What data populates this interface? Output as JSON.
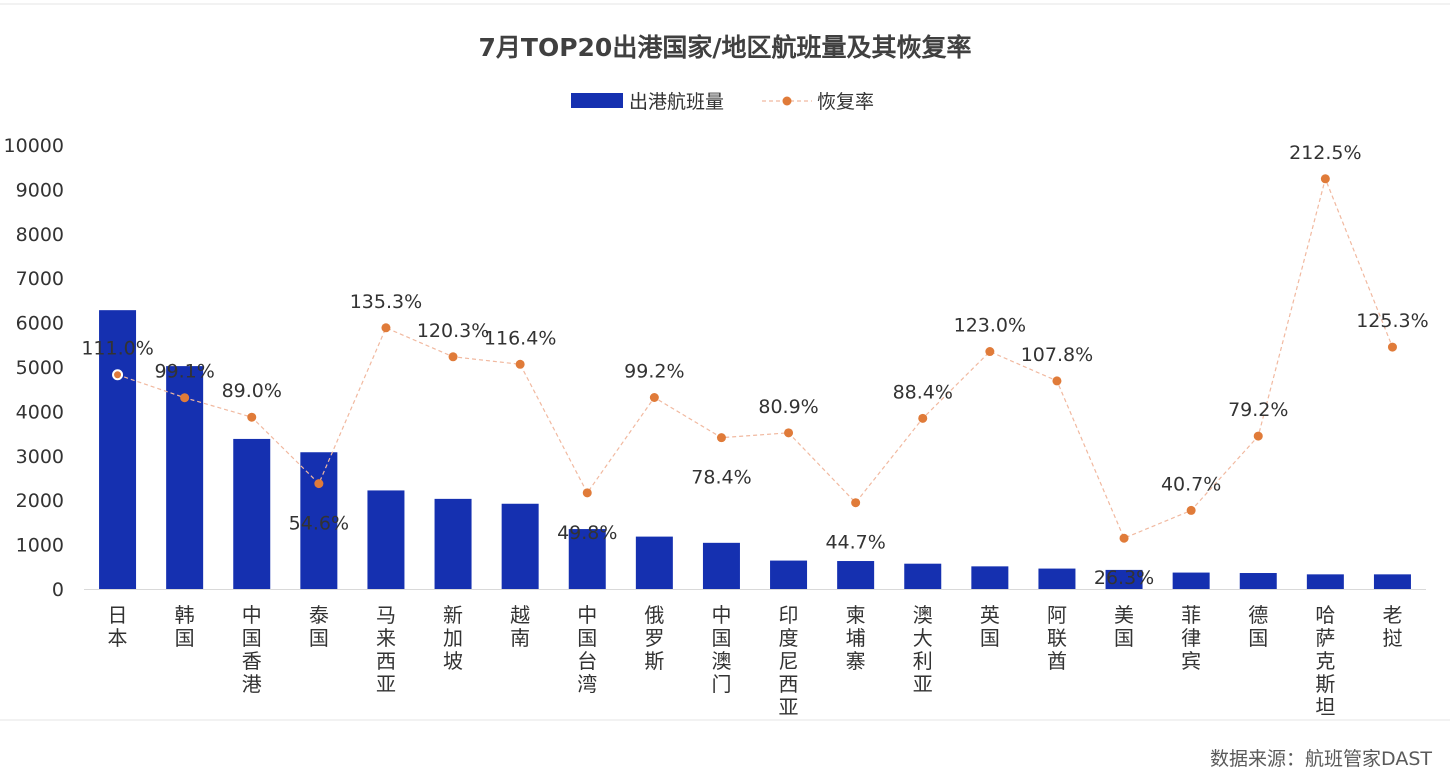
{
  "source": "数据来源：航班管家DAST",
  "colors": {
    "bar": "#1530b0",
    "point": "#e07b39",
    "line": "#f1b9a0",
    "text": "#333333",
    "title": "#404040"
  },
  "chart_data": {
    "type": "bar",
    "title": "7月TOP20出港国家/地区航班量及其恢复率",
    "legend": [
      "出港航班量",
      "恢复率"
    ],
    "legend_position": "top",
    "xlabel": "",
    "ylabel": "",
    "ylim": [
      0,
      10000
    ],
    "yticks": [
      "0",
      "1000",
      "2000",
      "3000",
      "4000",
      "5000",
      "6000",
      "7000",
      "8000",
      "9000",
      "10000"
    ],
    "grid": false,
    "categories": [
      "日本",
      "韩国",
      "中国香港",
      "泰国",
      "马来西亚",
      "新加坡",
      "越南",
      "中国台湾",
      "俄罗斯",
      "中国澳门",
      "印度尼西亚",
      "柬埔寨",
      "澳大利亚",
      "英国",
      "阿联酋",
      "美国",
      "菲律宾",
      "德国",
      "哈萨克斯坦",
      "老挝"
    ],
    "series": [
      {
        "name": "出港航班量",
        "type": "bar",
        "values": [
          6280,
          5020,
          3380,
          3080,
          2220,
          2030,
          1920,
          1350,
          1180,
          1040,
          640,
          630,
          570,
          510,
          460,
          430,
          370,
          360,
          330,
          330
        ]
      },
      {
        "name": "恢复率",
        "type": "line",
        "values": [
          111.0,
          99.1,
          89.0,
          54.6,
          135.3,
          120.3,
          116.4,
          49.8,
          99.2,
          78.4,
          80.9,
          44.7,
          88.4,
          123.0,
          107.8,
          26.3,
          40.7,
          79.2,
          212.5,
          125.3
        ],
        "labels": [
          "111.0%",
          "99.1%",
          "89.0%",
          "54.6%",
          "135.3%",
          "120.3%",
          "116.4%",
          "49.8%",
          "99.2%",
          "78.4%",
          "80.9%",
          "44.7%",
          "88.4%",
          "123.0%",
          "107.8%",
          "26.3%",
          "40.7%",
          "79.2%",
          "212.5%",
          "125.3%"
        ]
      }
    ]
  }
}
